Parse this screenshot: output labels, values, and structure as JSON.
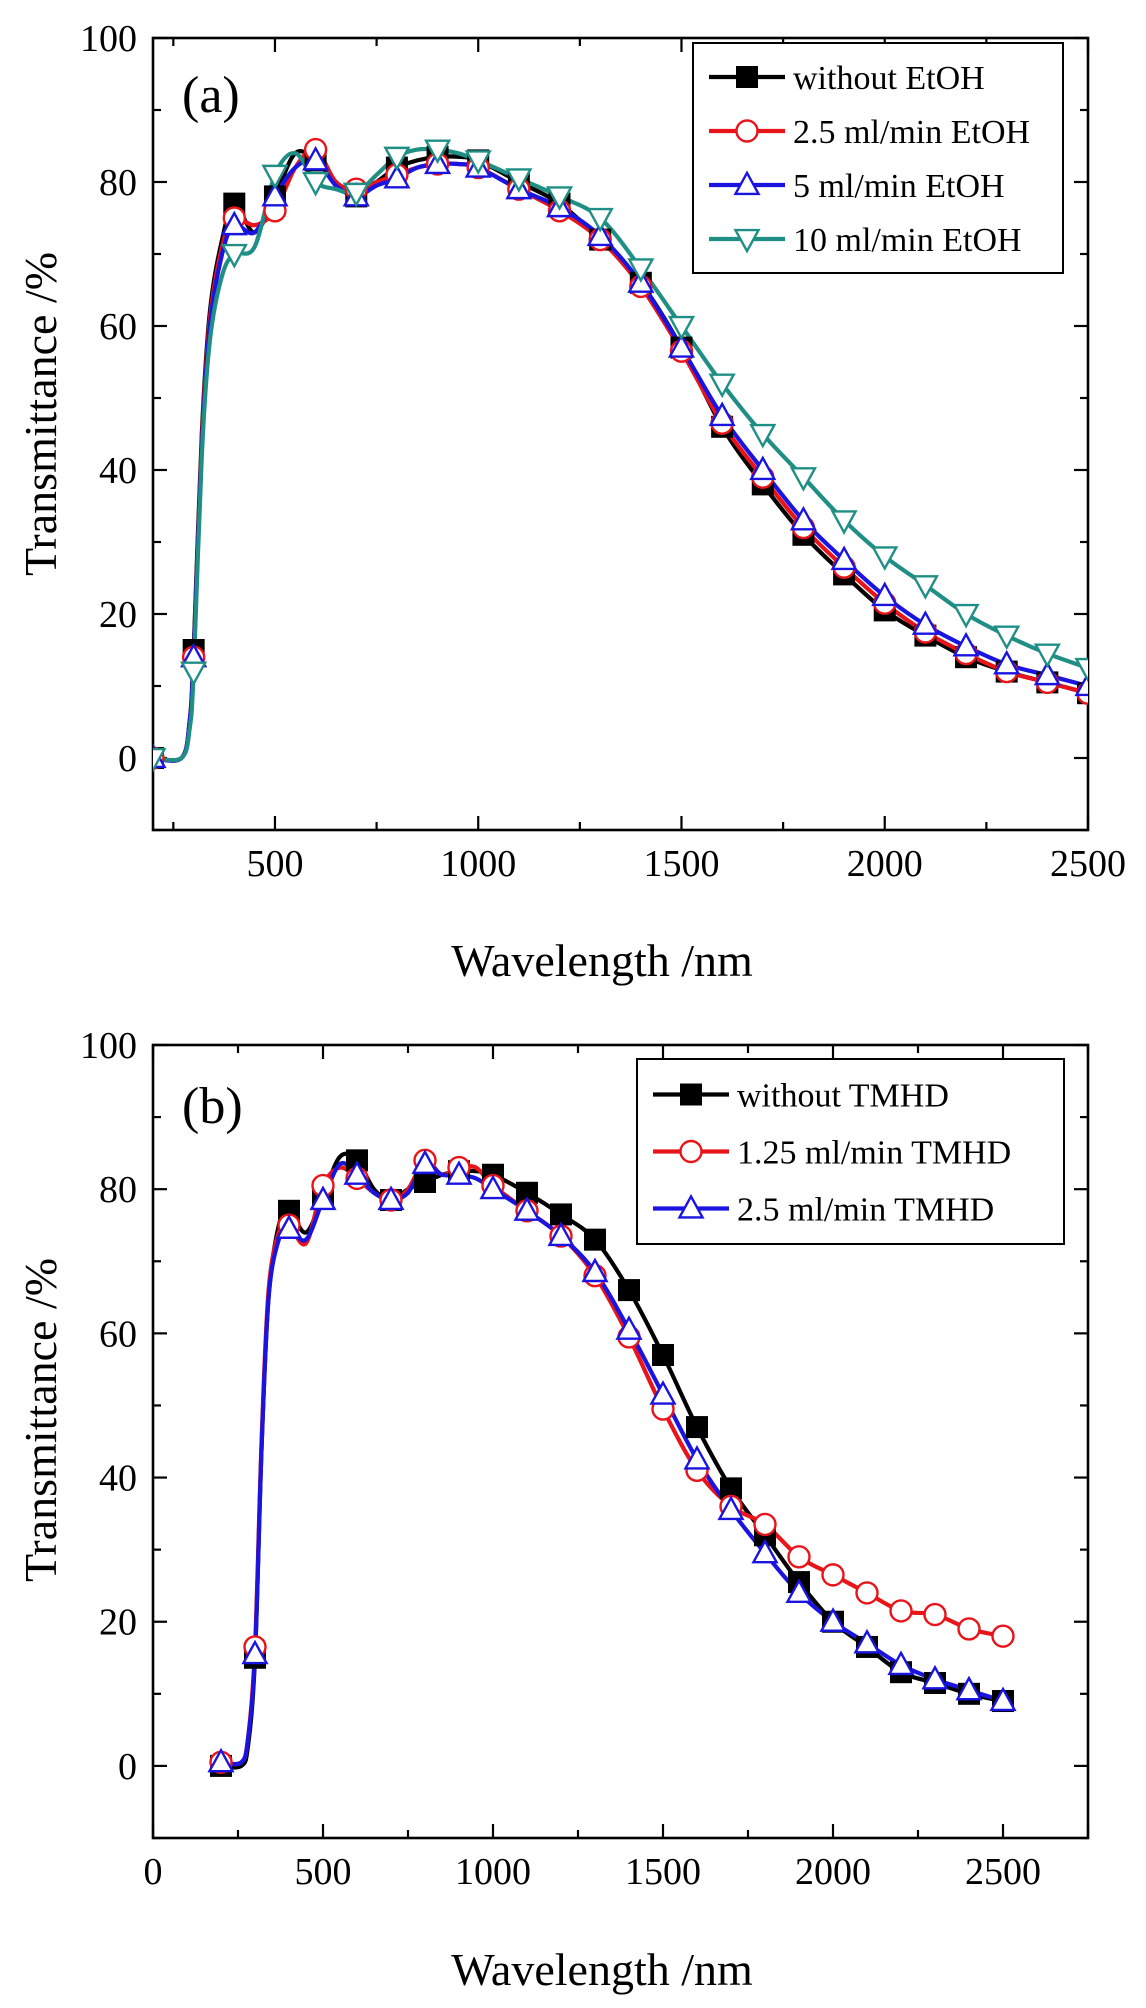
{
  "chart_data": [
    {
      "type": "line",
      "panel_label": "(a)",
      "xlabel": "Wavelength /nm",
      "ylabel": "Transmittance /%",
      "xlim": [
        200,
        2500
      ],
      "ylim": [
        -10,
        100
      ],
      "xticks": [
        500,
        1000,
        1500,
        2000,
        2500
      ],
      "yticks": [
        0,
        20,
        40,
        60,
        80,
        100
      ],
      "xtick_labels": [
        "500",
        "1000",
        "1500",
        "2000",
        "2500"
      ],
      "ytick_labels": [
        "0",
        "20",
        "40",
        "60",
        "80",
        "100"
      ],
      "legend_position": "top-right",
      "series": [
        {
          "name": "without EtOH",
          "color": "#000000",
          "marker": "square-filled",
          "x": [
            200,
            270,
            290,
            300,
            320,
            340,
            370,
            400,
            450,
            500,
            550,
            600,
            650,
            700,
            750,
            800,
            850,
            900,
            950,
            1000,
            1100,
            1200,
            1300,
            1400,
            1500,
            1600,
            1700,
            1800,
            1900,
            2000,
            2100,
            2200,
            2300,
            2400,
            2500
          ],
          "y": [
            0,
            0,
            5,
            15,
            45,
            62,
            72,
            77,
            73,
            78,
            84,
            83,
            80,
            78,
            80,
            82,
            83,
            83.5,
            83.5,
            83,
            80,
            77,
            72,
            66,
            57,
            46,
            38,
            31,
            25.5,
            20.5,
            17,
            14,
            12,
            10.5,
            9
          ],
          "marker_x": [
            200,
            300,
            400,
            500,
            600,
            700,
            800,
            900,
            1000,
            1100,
            1200,
            1300,
            1400,
            1500,
            1600,
            1700,
            1800,
            1900,
            2000,
            2100,
            2200,
            2300,
            2400,
            2500
          ],
          "marker_y": [
            0,
            15,
            77,
            78,
            83,
            78,
            82,
            83.5,
            83,
            80,
            77,
            72,
            66,
            57,
            46,
            38,
            31,
            25.5,
            20.5,
            17,
            14,
            12,
            10.5,
            9
          ]
        },
        {
          "name": "2.5 ml/min EtOH",
          "color": "#e8141a",
          "marker": "circle-open",
          "x": [
            200,
            270,
            290,
            300,
            320,
            340,
            370,
            400,
            450,
            500,
            550,
            600,
            650,
            700,
            750,
            800,
            850,
            900,
            950,
            1000,
            1100,
            1200,
            1300,
            1400,
            1500,
            1600,
            1700,
            1800,
            1900,
            2000,
            2100,
            2200,
            2300,
            2400,
            2500
          ],
          "y": [
            0,
            0,
            5,
            14,
            44,
            61,
            71,
            75,
            74,
            76,
            82,
            84.5,
            80,
            79,
            80,
            81,
            82,
            82.5,
            82.5,
            82,
            79,
            76,
            72,
            65.5,
            56.5,
            46.5,
            39,
            32,
            26.5,
            21.5,
            17.5,
            14.5,
            12,
            10.5,
            9
          ],
          "marker_x": [
            200,
            300,
            400,
            500,
            600,
            700,
            800,
            900,
            1000,
            1100,
            1200,
            1300,
            1400,
            1500,
            1600,
            1700,
            1800,
            1900,
            2000,
            2100,
            2200,
            2300,
            2400,
            2500
          ],
          "marker_y": [
            0,
            14,
            75,
            76,
            84.5,
            79,
            81,
            82.5,
            82,
            79,
            76,
            72,
            65.5,
            56.5,
            46.5,
            39,
            32,
            26.5,
            21.5,
            17.5,
            14.5,
            12,
            10.5,
            9
          ]
        },
        {
          "name": "5 ml/min EtOH",
          "color": "#1a14e0",
          "marker": "triangle-up-open",
          "x": [
            200,
            270,
            290,
            300,
            320,
            340,
            370,
            400,
            450,
            500,
            550,
            600,
            650,
            700,
            750,
            800,
            850,
            900,
            950,
            1000,
            1100,
            1200,
            1300,
            1400,
            1500,
            1600,
            1700,
            1800,
            1900,
            2000,
            2100,
            2200,
            2300,
            2400,
            2500
          ],
          "y": [
            0,
            0,
            5,
            14,
            43,
            60,
            70,
            74,
            73,
            78,
            82,
            83,
            79.5,
            78,
            79.5,
            80.5,
            82,
            82.5,
            82.5,
            82,
            79,
            76.5,
            72.5,
            66,
            57,
            47.5,
            40,
            33,
            27.5,
            22.5,
            18.5,
            15.5,
            13,
            11.5,
            10
          ],
          "marker_x": [
            200,
            300,
            400,
            500,
            600,
            700,
            800,
            900,
            1000,
            1100,
            1200,
            1300,
            1400,
            1500,
            1600,
            1700,
            1800,
            1900,
            2000,
            2100,
            2200,
            2300,
            2400,
            2500
          ],
          "marker_y": [
            0,
            14,
            74,
            78,
            83,
            78,
            80.5,
            82.5,
            82,
            79,
            76.5,
            72.5,
            66,
            57,
            47.5,
            40,
            33,
            27.5,
            22.5,
            18.5,
            15.5,
            13,
            11.5,
            10
          ]
        },
        {
          "name": "10 ml/min EtOH",
          "color": "#1f8f85",
          "marker": "triangle-down-open",
          "x": [
            200,
            270,
            290,
            300,
            320,
            340,
            370,
            400,
            450,
            500,
            550,
            600,
            650,
            700,
            750,
            800,
            850,
            900,
            950,
            1000,
            1100,
            1200,
            1300,
            1400,
            1500,
            1600,
            1700,
            1800,
            1900,
            2000,
            2100,
            2200,
            2300,
            2400,
            2500
          ],
          "y": [
            0,
            0,
            4,
            12,
            42,
            58,
            67,
            70,
            71,
            81,
            84,
            80,
            79,
            78.5,
            81,
            83.5,
            84.5,
            84.5,
            84,
            83,
            80.5,
            78,
            75,
            68,
            60,
            52,
            45,
            39,
            33,
            28,
            24,
            20,
            17,
            14.5,
            12.5
          ],
          "marker_x": [
            200,
            300,
            400,
            500,
            600,
            700,
            800,
            900,
            1000,
            1100,
            1200,
            1300,
            1400,
            1500,
            1600,
            1700,
            1800,
            1900,
            2000,
            2100,
            2200,
            2300,
            2400,
            2500
          ],
          "marker_y": [
            0,
            12,
            70,
            81,
            80,
            78.5,
            83.5,
            84.5,
            83,
            80.5,
            78,
            75,
            68,
            60,
            52,
            45,
            39,
            33,
            28,
            24,
            20,
            17,
            14.5,
            12.5
          ]
        }
      ]
    },
    {
      "type": "line",
      "panel_label": "(b)",
      "xlabel": "Wavelength /nm",
      "ylabel": "Transmittance /%",
      "xlim": [
        0,
        2750
      ],
      "ylim": [
        -10,
        100
      ],
      "xticks": [
        0,
        500,
        1000,
        1500,
        2000,
        2500
      ],
      "yticks": [
        0,
        20,
        40,
        60,
        80,
        100
      ],
      "xtick_labels": [
        "0",
        "500",
        "1000",
        "1500",
        "2000",
        "2500"
      ],
      "ytick_labels": [
        "0",
        "20",
        "40",
        "60",
        "80",
        "100"
      ],
      "legend_position": "top-right",
      "series": [
        {
          "name": "without TMHD",
          "color": "#000000",
          "marker": "square-filled",
          "x": [
            200,
            260,
            280,
            300,
            320,
            340,
            370,
            400,
            450,
            500,
            550,
            600,
            650,
            700,
            750,
            800,
            850,
            900,
            950,
            1000,
            1100,
            1200,
            1300,
            1400,
            1500,
            1600,
            1700,
            1800,
            1900,
            2000,
            2100,
            2200,
            2300,
            2400,
            2500
          ],
          "y": [
            0,
            0,
            3,
            15,
            45,
            65,
            75,
            77,
            74,
            79,
            84.5,
            84,
            80,
            78.5,
            80,
            81,
            82,
            82.5,
            82.5,
            82,
            79.5,
            76.5,
            73,
            66,
            57,
            47,
            38.5,
            32,
            25.5,
            20,
            16.5,
            13,
            11.5,
            10,
            9
          ],
          "marker_x": [
            200,
            300,
            400,
            500,
            600,
            700,
            800,
            900,
            1000,
            1100,
            1200,
            1300,
            1400,
            1500,
            1600,
            1700,
            1800,
            1900,
            2000,
            2100,
            2200,
            2300,
            2400,
            2500
          ],
          "marker_y": [
            0,
            15,
            77,
            79,
            84,
            78.5,
            81,
            82.5,
            82,
            79.5,
            76.5,
            73,
            66,
            57,
            47,
            38.5,
            32,
            25.5,
            20,
            16.5,
            13,
            11.5,
            10,
            9
          ]
        },
        {
          "name": "1.25 ml/min TMHD",
          "color": "#e8141a",
          "marker": "circle-open",
          "x": [
            200,
            260,
            280,
            300,
            320,
            340,
            370,
            400,
            450,
            500,
            550,
            600,
            650,
            700,
            750,
            800,
            850,
            900,
            950,
            1000,
            1100,
            1200,
            1300,
            1400,
            1500,
            1600,
            1700,
            1800,
            1900,
            2000,
            2100,
            2200,
            2300,
            2400,
            2500
          ],
          "y": [
            0.5,
            0.5,
            4,
            16.5,
            46,
            66,
            74,
            75,
            72.5,
            80.5,
            83,
            81.5,
            79.5,
            78.5,
            80,
            84,
            82,
            83,
            83,
            80.5,
            77,
            73.5,
            68,
            59.5,
            49.5,
            41,
            36,
            33.5,
            29,
            26.5,
            24,
            21.5,
            21,
            19,
            18
          ],
          "marker_x": [
            200,
            300,
            400,
            500,
            600,
            700,
            800,
            900,
            1000,
            1100,
            1200,
            1300,
            1400,
            1500,
            1600,
            1700,
            1800,
            1900,
            2000,
            2100,
            2200,
            2300,
            2400,
            2500
          ],
          "marker_y": [
            0.5,
            16.5,
            75,
            80.5,
            81.5,
            78.5,
            84,
            83,
            80.5,
            77,
            73.5,
            68,
            59.5,
            49.5,
            41,
            36,
            33.5,
            29,
            26.5,
            24,
            21.5,
            21,
            19,
            18
          ]
        },
        {
          "name": "2.5 ml/min TMHD",
          "color": "#1a14e0",
          "marker": "triangle-up-open",
          "x": [
            200,
            260,
            280,
            300,
            320,
            340,
            370,
            400,
            450,
            500,
            550,
            600,
            650,
            700,
            750,
            800,
            850,
            900,
            950,
            1000,
            1100,
            1200,
            1300,
            1400,
            1500,
            1600,
            1700,
            1800,
            1900,
            2000,
            2100,
            2200,
            2300,
            2400,
            2500
          ],
          "y": [
            0.5,
            0.5,
            4,
            15.5,
            45,
            65,
            73,
            74.5,
            73,
            78.5,
            83.5,
            82,
            79.5,
            78.5,
            79.5,
            83.5,
            82,
            82,
            81.5,
            80,
            77,
            73.5,
            68.5,
            60.5,
            51.5,
            42.5,
            35.5,
            29.5,
            24,
            20,
            17,
            14,
            12,
            10.5,
            9
          ],
          "marker_x": [
            200,
            300,
            400,
            500,
            600,
            700,
            800,
            900,
            1000,
            1100,
            1200,
            1300,
            1400,
            1500,
            1600,
            1700,
            1800,
            1900,
            2000,
            2100,
            2200,
            2300,
            2400,
            2500
          ],
          "marker_y": [
            0.5,
            15.5,
            74.5,
            78.5,
            82,
            78.5,
            83.5,
            82,
            80,
            77,
            73.5,
            68.5,
            60.5,
            51.5,
            42.5,
            35.5,
            29.5,
            24,
            20,
            17,
            14,
            12,
            10.5,
            9
          ]
        }
      ]
    }
  ]
}
